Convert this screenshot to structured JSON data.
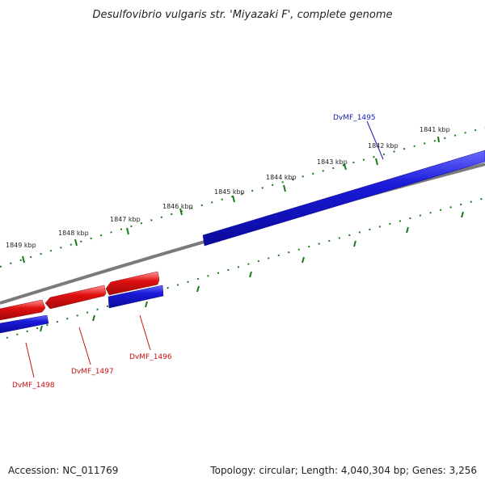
{
  "title": "Desulfovibrio vulgaris str. 'Miyazaki F', complete genome",
  "footer": {
    "accession": "Accession: NC_011769",
    "summary": "Topology: circular; Length: 4,040,304 bp; Genes: 3,256"
  },
  "ticks": {
    "labels": [
      "1841 kbp",
      "1842 kbp",
      "1843 kbp",
      "1844 kbp",
      "1845 kbp",
      "1846 kbp",
      "1847 kbp",
      "1848 kbp",
      "1849 kbp"
    ]
  },
  "genes": [
    {
      "name": "DvMF_1495",
      "strand": "plus",
      "start_kbp": 1840.6,
      "end_kbp": 1846.0
    },
    {
      "name": "DvMF_1496",
      "strand": "minus",
      "start_kbp": 1846.5,
      "end_kbp": 1847.6
    },
    {
      "name": "DvMF_1497",
      "strand": "minus",
      "start_kbp": 1847.6,
      "end_kbp": 1848.8
    },
    {
      "name": "DvMF_1498",
      "strand": "minus",
      "start_kbp": 1848.8,
      "end_kbp": 1849.8
    },
    {
      "name": "",
      "strand": "plus",
      "start_kbp": 1848.8,
      "end_kbp": 1849.8
    }
  ],
  "colors": {
    "plus_strand": "#1a1ad9",
    "minus_strand": "#e01010",
    "backbone": "#7a7a7a",
    "ticks": "#1a7a1a",
    "label_plus": "#1a1ab0",
    "label_minus": "#cc1010"
  }
}
